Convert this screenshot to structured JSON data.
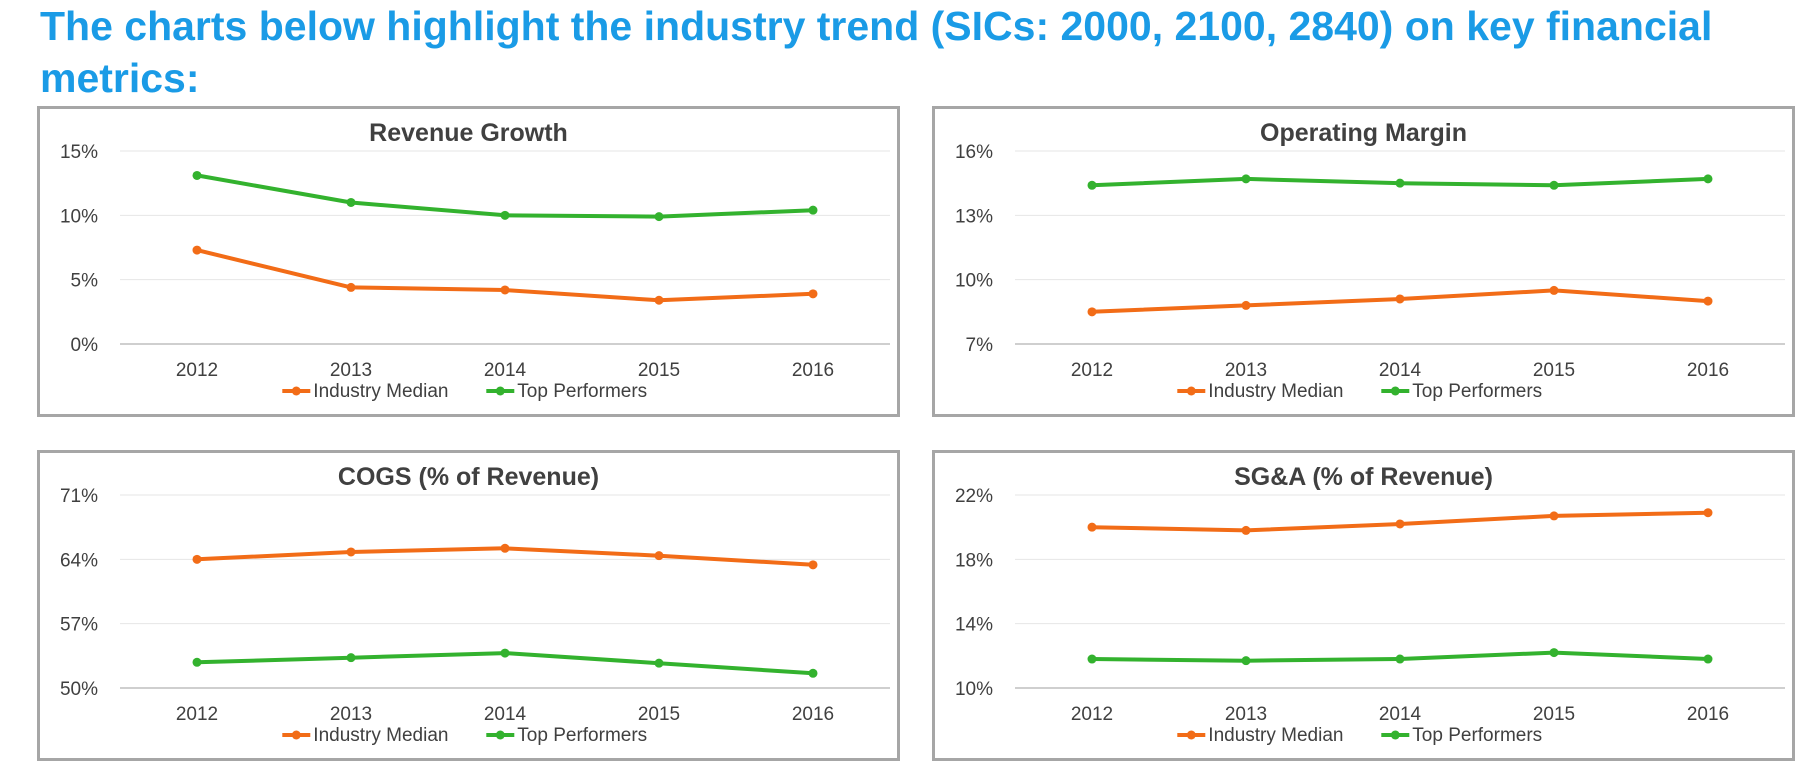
{
  "page": {
    "title": "The charts below highlight the industry trend (SICs: 2000, 2100, 2840) on key financial metrics:"
  },
  "colors": {
    "title": "#1a9be6",
    "industry_median": "#f26c17",
    "top_performers": "#33b22e",
    "panel_border": "#a6a6a6",
    "gridline": "#e6e6e6",
    "text": "#404040"
  },
  "chart_data": [
    {
      "type": "line",
      "title": "Revenue Growth",
      "x": [
        "2012",
        "2013",
        "2014",
        "2015",
        "2016"
      ],
      "yticks": [
        "0%",
        "5%",
        "10%",
        "15%"
      ],
      "ylim": [
        0,
        15
      ],
      "grid": true,
      "legend": "bottom",
      "series": [
        {
          "name": "Industry Median",
          "color": "#f26c17",
          "values": [
            7.3,
            4.4,
            4.2,
            3.4,
            3.9
          ]
        },
        {
          "name": "Top Performers",
          "color": "#33b22e",
          "values": [
            13.1,
            11.0,
            10.0,
            9.9,
            10.4
          ]
        }
      ]
    },
    {
      "type": "line",
      "title": "Operating Margin",
      "x": [
        "2012",
        "2013",
        "2014",
        "2015",
        "2016"
      ],
      "yticks": [
        "7%",
        "10%",
        "13%",
        "16%"
      ],
      "ylim": [
        7,
        16
      ],
      "grid": true,
      "legend": "bottom",
      "series": [
        {
          "name": "Industry Median",
          "color": "#f26c17",
          "values": [
            8.5,
            8.8,
            9.1,
            9.5,
            9.0
          ]
        },
        {
          "name": "Top Performers",
          "color": "#33b22e",
          "values": [
            14.4,
            14.7,
            14.5,
            14.4,
            14.7
          ]
        }
      ]
    },
    {
      "type": "line",
      "title": "COGS (% of Revenue)",
      "x": [
        "2012",
        "2013",
        "2014",
        "2015",
        "2016"
      ],
      "yticks": [
        "50%",
        "57%",
        "64%",
        "71%"
      ],
      "ylim": [
        50,
        71
      ],
      "grid": true,
      "legend": "bottom",
      "series": [
        {
          "name": "Industry Median",
          "color": "#f26c17",
          "values": [
            64.0,
            64.8,
            65.2,
            64.4,
            63.4
          ]
        },
        {
          "name": "Top Performers",
          "color": "#33b22e",
          "values": [
            52.8,
            53.3,
            53.8,
            52.7,
            51.6
          ]
        }
      ]
    },
    {
      "type": "line",
      "title": "SG&A (% of Revenue)",
      "x": [
        "2012",
        "2013",
        "2014",
        "2015",
        "2016"
      ],
      "yticks": [
        "10%",
        "14%",
        "18%",
        "22%"
      ],
      "ylim": [
        10,
        22
      ],
      "grid": true,
      "legend": "bottom",
      "series": [
        {
          "name": "Industry Median",
          "color": "#f26c17",
          "values": [
            20.0,
            19.8,
            20.2,
            20.7,
            20.9
          ]
        },
        {
          "name": "Top Performers",
          "color": "#33b22e",
          "values": [
            11.8,
            11.7,
            11.8,
            12.2,
            11.8
          ]
        }
      ]
    }
  ]
}
